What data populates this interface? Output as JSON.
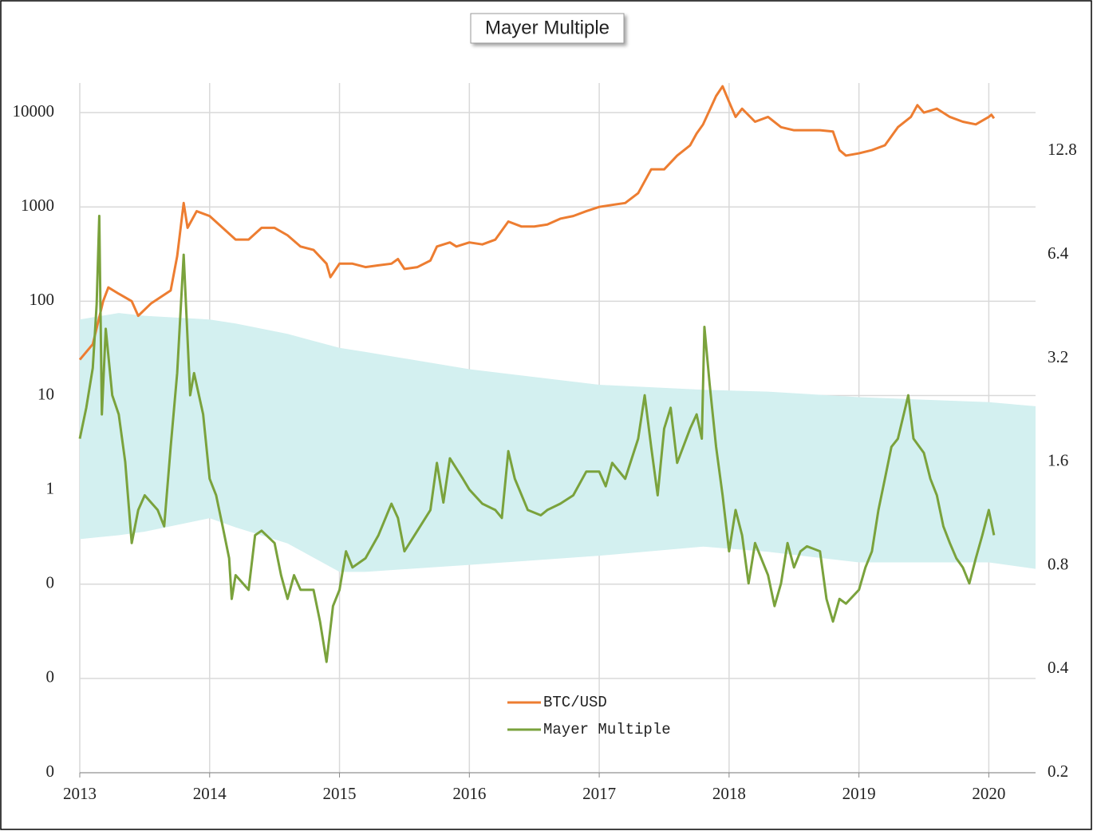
{
  "chart_data": {
    "type": "line",
    "title": "Mayer Multiple",
    "xlim": [
      2013,
      2020.36
    ],
    "xticks": [
      2013,
      2014,
      2015,
      2016,
      2017,
      2018,
      2019,
      2020
    ],
    "ylim": [
      0.001,
      20590
    ],
    "yticks": [
      {
        "value": 0.001,
        "label": "0"
      },
      {
        "value": 0.01,
        "label": "0"
      },
      {
        "value": 0.1,
        "label": "0"
      },
      1,
      10,
      100,
      1000,
      10000
    ],
    "y2lim": [
      0.2,
      20.2
    ],
    "y2ticks": [
      0.2,
      0.4,
      0.8,
      1.6,
      3.2,
      6.4,
      12.8
    ],
    "log_scale": true,
    "grid": true,
    "legend": "bottom",
    "band": {
      "color": "#d3f0f0",
      "x": [
        2013.0,
        2013.3,
        2013.5,
        2014.0,
        2014.2,
        2014.6,
        2015.0,
        2015.2,
        2016.0,
        2017.0,
        2017.8,
        2018.3,
        2019.0,
        2020.0,
        2020.36
      ],
      "upper": [
        64,
        75,
        70,
        64,
        58,
        45,
        32,
        29,
        19,
        13,
        11.5,
        11,
        9.6,
        8.5,
        7.7
      ],
      "lower": [
        0.3,
        0.33,
        0.36,
        0.5,
        0.4,
        0.27,
        0.135,
        0.135,
        0.16,
        0.2,
        0.25,
        0.22,
        0.17,
        0.17,
        0.145
      ]
    },
    "series": [
      {
        "name": "BTC/USD",
        "color": "#ed7d31",
        "x": [
          2013.0,
          2013.1,
          2013.18,
          2013.22,
          2013.3,
          2013.4,
          2013.45,
          2013.55,
          2013.7,
          2013.75,
          2013.8,
          2013.83,
          2013.9,
          2014.0,
          2014.1,
          2014.2,
          2014.3,
          2014.4,
          2014.5,
          2014.6,
          2014.7,
          2014.8,
          2014.9,
          2014.93,
          2015.0,
          2015.1,
          2015.2,
          2015.3,
          2015.4,
          2015.45,
          2015.5,
          2015.6,
          2015.7,
          2015.75,
          2015.85,
          2015.9,
          2016.0,
          2016.1,
          2016.2,
          2016.3,
          2016.4,
          2016.5,
          2016.6,
          2016.7,
          2016.8,
          2016.9,
          2017.0,
          2017.1,
          2017.2,
          2017.3,
          2017.4,
          2017.5,
          2017.6,
          2017.7,
          2017.75,
          2017.8,
          2017.9,
          2017.95,
          2018.0,
          2018.05,
          2018.1,
          2018.2,
          2018.3,
          2018.4,
          2018.5,
          2018.6,
          2018.7,
          2018.8,
          2018.85,
          2018.9,
          2019.0,
          2019.1,
          2019.2,
          2019.3,
          2019.4,
          2019.45,
          2019.5,
          2019.6,
          2019.7,
          2019.8,
          2019.9,
          2020.0,
          2020.02,
          2020.04
        ],
        "values": [
          24,
          35,
          100,
          140,
          120,
          100,
          70,
          95,
          130,
          300,
          1100,
          600,
          900,
          800,
          600,
          450,
          450,
          600,
          600,
          500,
          380,
          350,
          250,
          180,
          250,
          250,
          230,
          240,
          250,
          280,
          220,
          230,
          270,
          380,
          420,
          380,
          420,
          400,
          450,
          700,
          620,
          620,
          650,
          750,
          800,
          900,
          1000,
          1050,
          1100,
          1400,
          2500,
          2500,
          3500,
          4500,
          6000,
          7500,
          15000,
          19000,
          13000,
          9000,
          11000,
          8000,
          9000,
          7000,
          6500,
          6500,
          6500,
          6300,
          4000,
          3500,
          3700,
          4000,
          4500,
          7000,
          9000,
          12000,
          10000,
          11000,
          9000,
          8000,
          7500,
          9000,
          9500,
          8700
        ]
      },
      {
        "name": "Mayer Multiple",
        "color": "#7aa23c",
        "axis": "y2",
        "x": [
          2013.0,
          2013.05,
          2013.1,
          2013.13,
          2013.15,
          2013.17,
          2013.2,
          2013.25,
          2013.3,
          2013.35,
          2013.4,
          2013.45,
          2013.5,
          2013.6,
          2013.65,
          2013.7,
          2013.75,
          2013.8,
          2013.85,
          2013.88,
          2013.95,
          2014.0,
          2014.05,
          2014.1,
          2014.15,
          2014.17,
          2014.2,
          2014.3,
          2014.35,
          2014.4,
          2014.5,
          2014.55,
          2014.6,
          2014.65,
          2014.7,
          2014.8,
          2014.85,
          2014.9,
          2014.95,
          2015.0,
          2015.05,
          2015.1,
          2015.2,
          2015.3,
          2015.4,
          2015.45,
          2015.5,
          2015.6,
          2015.7,
          2015.75,
          2015.8,
          2015.85,
          2015.95,
          2016.0,
          2016.1,
          2016.2,
          2016.25,
          2016.3,
          2016.35,
          2016.45,
          2016.55,
          2016.6,
          2016.7,
          2016.8,
          2016.9,
          2017.0,
          2017.05,
          2017.1,
          2017.2,
          2017.3,
          2017.35,
          2017.4,
          2017.45,
          2017.5,
          2017.55,
          2017.6,
          2017.7,
          2017.75,
          2017.79,
          2017.81,
          2017.85,
          2017.9,
          2017.95,
          2018.0,
          2018.05,
          2018.1,
          2018.15,
          2018.2,
          2018.3,
          2018.35,
          2018.4,
          2018.45,
          2018.5,
          2018.55,
          2018.6,
          2018.7,
          2018.75,
          2018.8,
          2018.85,
          2018.9,
          2019.0,
          2019.05,
          2019.1,
          2019.15,
          2019.2,
          2019.25,
          2019.3,
          2019.38,
          2019.42,
          2019.5,
          2019.55,
          2019.6,
          2019.65,
          2019.7,
          2019.75,
          2019.8,
          2019.85,
          2019.9,
          2019.95,
          2020.0,
          2020.04
        ],
        "values": [
          1.87,
          2.3,
          3.0,
          4.6,
          8.3,
          2.2,
          3.9,
          2.5,
          2.2,
          1.6,
          0.93,
          1.16,
          1.28,
          1.16,
          1.04,
          1.77,
          2.9,
          6.4,
          2.5,
          2.9,
          2.2,
          1.43,
          1.28,
          1.04,
          0.84,
          0.64,
          0.75,
          0.68,
          0.98,
          1.01,
          0.93,
          0.75,
          0.64,
          0.75,
          0.68,
          0.68,
          0.55,
          0.42,
          0.61,
          0.68,
          0.88,
          0.79,
          0.84,
          0.98,
          1.21,
          1.1,
          0.88,
          1.01,
          1.16,
          1.59,
          1.22,
          1.64,
          1.43,
          1.33,
          1.21,
          1.16,
          1.1,
          1.72,
          1.43,
          1.16,
          1.12,
          1.16,
          1.21,
          1.28,
          1.5,
          1.5,
          1.36,
          1.59,
          1.43,
          1.87,
          2.5,
          1.77,
          1.28,
          2.0,
          2.3,
          1.59,
          2.0,
          2.2,
          1.87,
          3.95,
          2.7,
          1.77,
          1.28,
          0.88,
          1.16,
          0.98,
          0.71,
          0.93,
          0.75,
          0.61,
          0.71,
          0.93,
          0.79,
          0.88,
          0.91,
          0.88,
          0.64,
          0.55,
          0.64,
          0.62,
          0.68,
          0.79,
          0.88,
          1.16,
          1.43,
          1.77,
          1.87,
          2.5,
          1.87,
          1.7,
          1.43,
          1.28,
          1.04,
          0.93,
          0.84,
          0.79,
          0.71,
          0.84,
          0.98,
          1.16,
          0.98
        ]
      }
    ]
  }
}
